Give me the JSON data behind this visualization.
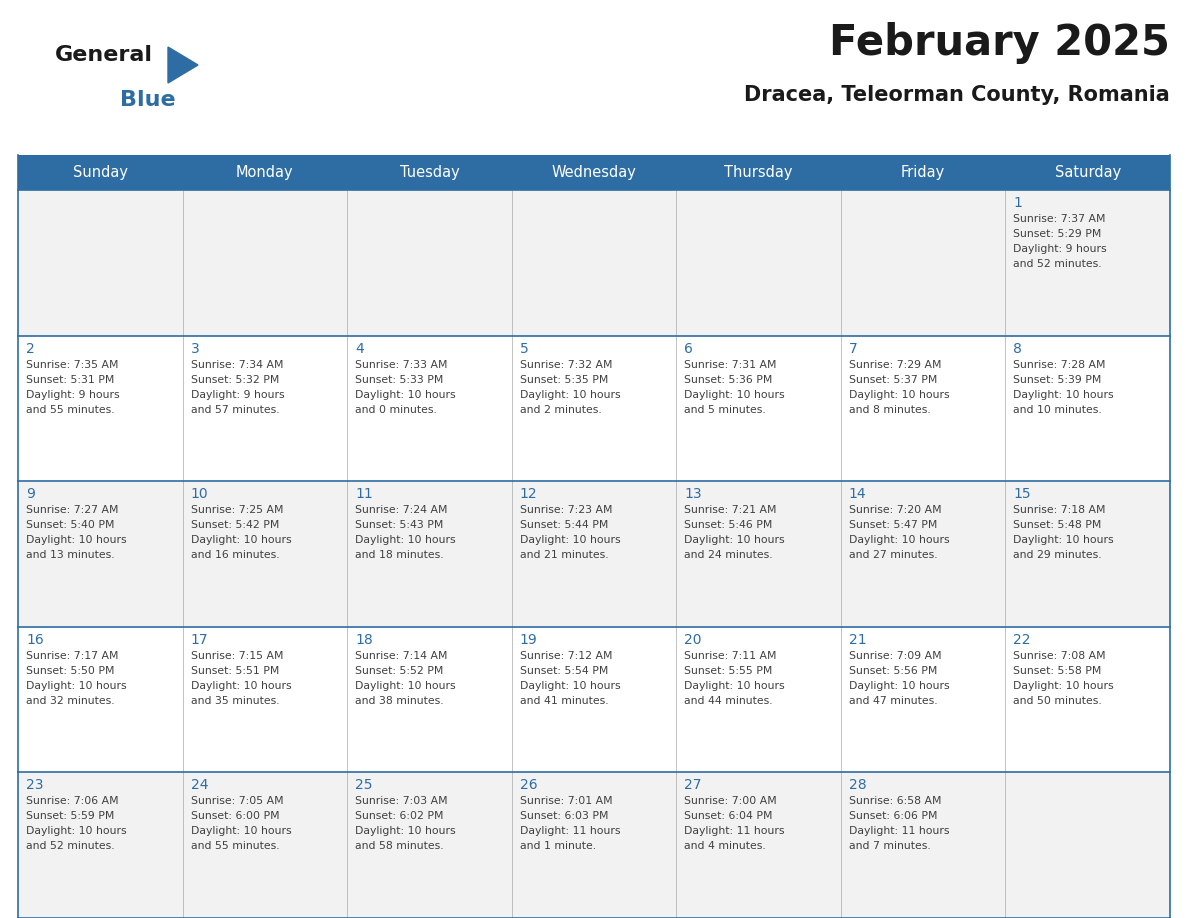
{
  "title": "February 2025",
  "subtitle": "Dracea, Teleorman County, Romania",
  "header_bg": "#2E6DA4",
  "header_text": "#FFFFFF",
  "cell_bg_odd": "#F2F2F2",
  "cell_bg_even": "#FFFFFF",
  "border_color": "#2E6DA4",
  "day_number_color": "#2E6DA4",
  "info_text_color": "#404040",
  "title_fontsize": 30,
  "subtitle_fontsize": 15,
  "header_fontsize": 10.5,
  "day_num_fontsize": 10,
  "cell_text_fontsize": 7.8,
  "logo_general_fontsize": 16,
  "logo_blue_fontsize": 16,
  "days_of_week": [
    "Sunday",
    "Monday",
    "Tuesday",
    "Wednesday",
    "Thursday",
    "Friday",
    "Saturday"
  ],
  "calendar_data": [
    [
      null,
      null,
      null,
      null,
      null,
      null,
      {
        "day": "1",
        "sunrise": "7:37 AM",
        "sunset": "5:29 PM",
        "daylight": "9 hours",
        "daylight2": "and 52 minutes."
      }
    ],
    [
      {
        "day": "2",
        "sunrise": "7:35 AM",
        "sunset": "5:31 PM",
        "daylight": "9 hours",
        "daylight2": "and 55 minutes."
      },
      {
        "day": "3",
        "sunrise": "7:34 AM",
        "sunset": "5:32 PM",
        "daylight": "9 hours",
        "daylight2": "and 57 minutes."
      },
      {
        "day": "4",
        "sunrise": "7:33 AM",
        "sunset": "5:33 PM",
        "daylight": "10 hours",
        "daylight2": "and 0 minutes."
      },
      {
        "day": "5",
        "sunrise": "7:32 AM",
        "sunset": "5:35 PM",
        "daylight": "10 hours",
        "daylight2": "and 2 minutes."
      },
      {
        "day": "6",
        "sunrise": "7:31 AM",
        "sunset": "5:36 PM",
        "daylight": "10 hours",
        "daylight2": "and 5 minutes."
      },
      {
        "day": "7",
        "sunrise": "7:29 AM",
        "sunset": "5:37 PM",
        "daylight": "10 hours",
        "daylight2": "and 8 minutes."
      },
      {
        "day": "8",
        "sunrise": "7:28 AM",
        "sunset": "5:39 PM",
        "daylight": "10 hours",
        "daylight2": "and 10 minutes."
      }
    ],
    [
      {
        "day": "9",
        "sunrise": "7:27 AM",
        "sunset": "5:40 PM",
        "daylight": "10 hours",
        "daylight2": "and 13 minutes."
      },
      {
        "day": "10",
        "sunrise": "7:25 AM",
        "sunset": "5:42 PM",
        "daylight": "10 hours",
        "daylight2": "and 16 minutes."
      },
      {
        "day": "11",
        "sunrise": "7:24 AM",
        "sunset": "5:43 PM",
        "daylight": "10 hours",
        "daylight2": "and 18 minutes."
      },
      {
        "day": "12",
        "sunrise": "7:23 AM",
        "sunset": "5:44 PM",
        "daylight": "10 hours",
        "daylight2": "and 21 minutes."
      },
      {
        "day": "13",
        "sunrise": "7:21 AM",
        "sunset": "5:46 PM",
        "daylight": "10 hours",
        "daylight2": "and 24 minutes."
      },
      {
        "day": "14",
        "sunrise": "7:20 AM",
        "sunset": "5:47 PM",
        "daylight": "10 hours",
        "daylight2": "and 27 minutes."
      },
      {
        "day": "15",
        "sunrise": "7:18 AM",
        "sunset": "5:48 PM",
        "daylight": "10 hours",
        "daylight2": "and 29 minutes."
      }
    ],
    [
      {
        "day": "16",
        "sunrise": "7:17 AM",
        "sunset": "5:50 PM",
        "daylight": "10 hours",
        "daylight2": "and 32 minutes."
      },
      {
        "day": "17",
        "sunrise": "7:15 AM",
        "sunset": "5:51 PM",
        "daylight": "10 hours",
        "daylight2": "and 35 minutes."
      },
      {
        "day": "18",
        "sunrise": "7:14 AM",
        "sunset": "5:52 PM",
        "daylight": "10 hours",
        "daylight2": "and 38 minutes."
      },
      {
        "day": "19",
        "sunrise": "7:12 AM",
        "sunset": "5:54 PM",
        "daylight": "10 hours",
        "daylight2": "and 41 minutes."
      },
      {
        "day": "20",
        "sunrise": "7:11 AM",
        "sunset": "5:55 PM",
        "daylight": "10 hours",
        "daylight2": "and 44 minutes."
      },
      {
        "day": "21",
        "sunrise": "7:09 AM",
        "sunset": "5:56 PM",
        "daylight": "10 hours",
        "daylight2": "and 47 minutes."
      },
      {
        "day": "22",
        "sunrise": "7:08 AM",
        "sunset": "5:58 PM",
        "daylight": "10 hours",
        "daylight2": "and 50 minutes."
      }
    ],
    [
      {
        "day": "23",
        "sunrise": "7:06 AM",
        "sunset": "5:59 PM",
        "daylight": "10 hours",
        "daylight2": "and 52 minutes."
      },
      {
        "day": "24",
        "sunrise": "7:05 AM",
        "sunset": "6:00 PM",
        "daylight": "10 hours",
        "daylight2": "and 55 minutes."
      },
      {
        "day": "25",
        "sunrise": "7:03 AM",
        "sunset": "6:02 PM",
        "daylight": "10 hours",
        "daylight2": "and 58 minutes."
      },
      {
        "day": "26",
        "sunrise": "7:01 AM",
        "sunset": "6:03 PM",
        "daylight": "11 hours",
        "daylight2": "and 1 minute."
      },
      {
        "day": "27",
        "sunrise": "7:00 AM",
        "sunset": "6:04 PM",
        "daylight": "11 hours",
        "daylight2": "and 4 minutes."
      },
      {
        "day": "28",
        "sunrise": "6:58 AM",
        "sunset": "6:06 PM",
        "daylight": "11 hours",
        "daylight2": "and 7 minutes."
      },
      null
    ]
  ]
}
